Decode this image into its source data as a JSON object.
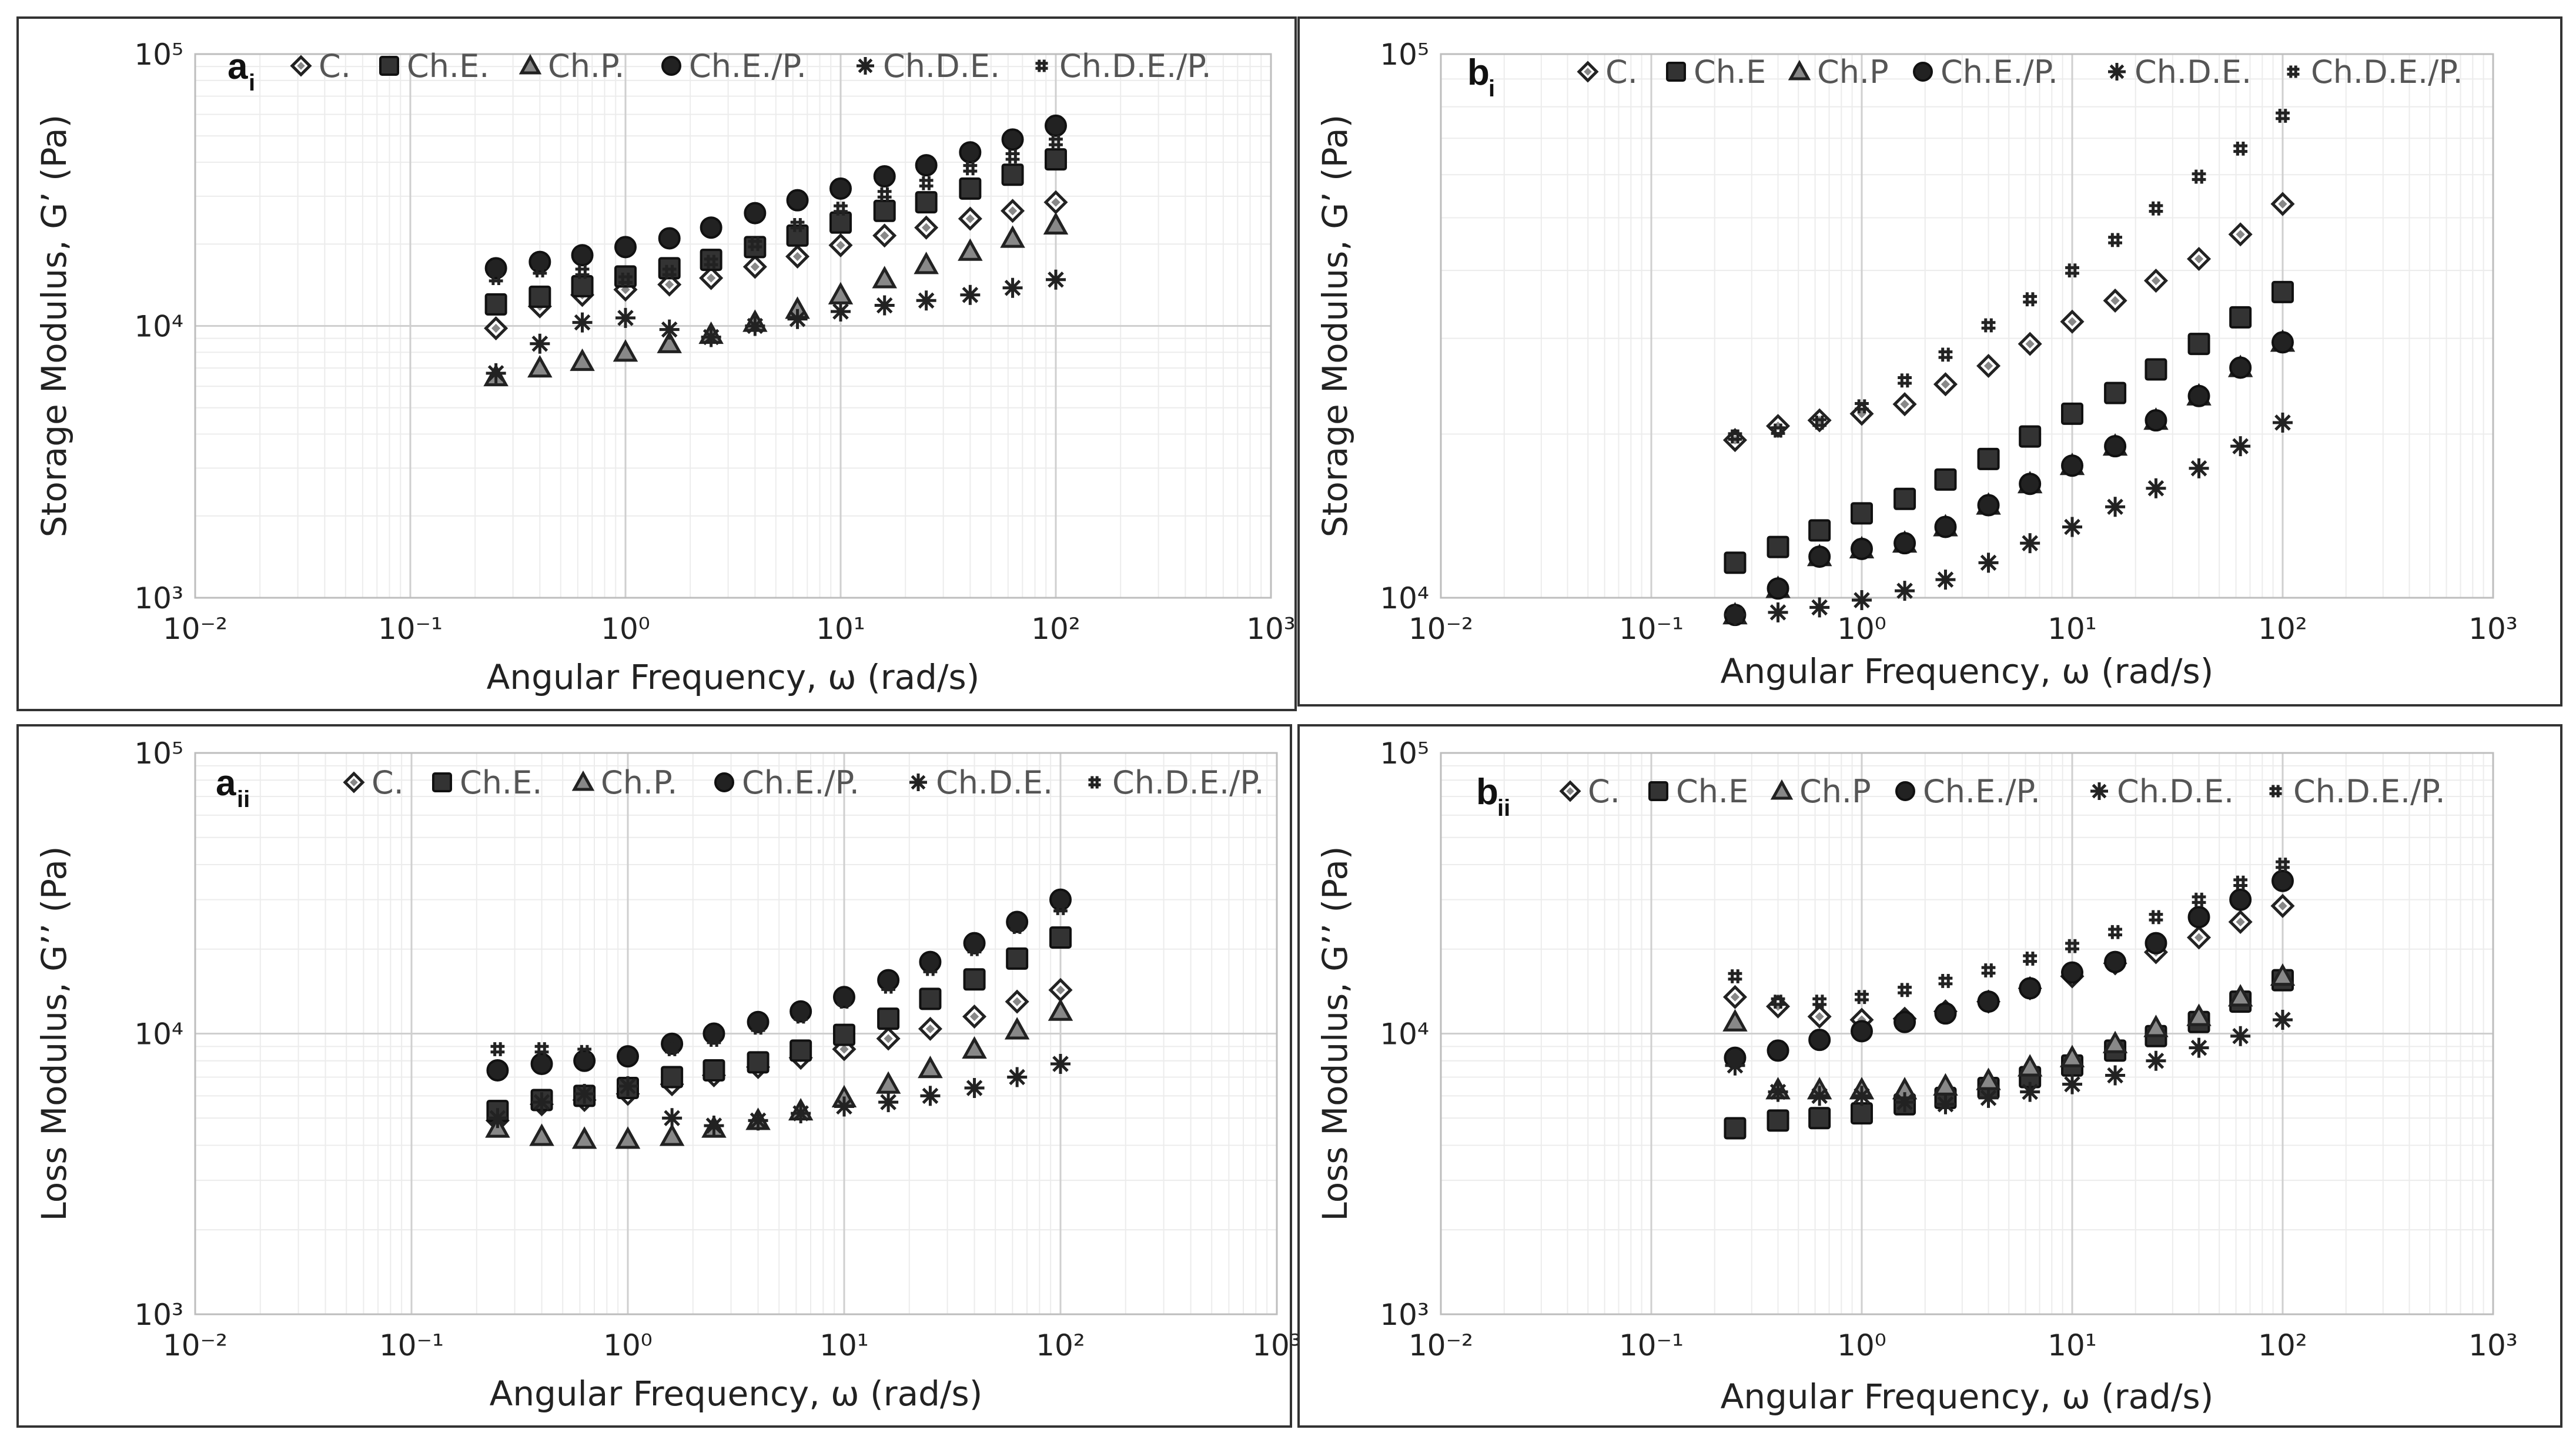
{
  "styles": {
    "C.": {
      "marker": "diamond",
      "fill": "#ffffff",
      "stroke": "#222222"
    },
    "Ch.E.": {
      "marker": "square",
      "fill": "#333333",
      "stroke": "#111111"
    },
    "Ch.P.": {
      "marker": "triangle",
      "fill": "#888888",
      "stroke": "#222222"
    },
    "Ch.E./P.": {
      "marker": "circle",
      "fill": "#222222",
      "stroke": "#111111"
    },
    "Ch.D.E.": {
      "marker": "star",
      "fill": "#222222",
      "stroke": "#222222"
    },
    "Ch.D.E./P.": {
      "marker": "hash",
      "fill": "#222222",
      "stroke": "#222222"
    }
  },
  "chart_data": [
    {
      "id": "ai",
      "type": "scatter",
      "panel_letter": "a",
      "panel_sub": "i",
      "xlabel": "Angular Frequency, ω (rad/s)",
      "ylabel": "Storage Modulus, G’ (Pa)",
      "xscale": "log",
      "yscale": "log",
      "xlim": [
        0.01,
        1000
      ],
      "ylim": [
        1000,
        100000
      ],
      "xticks": [
        "10⁻²",
        "10⁻¹",
        "10⁰",
        "10¹",
        "10²",
        "10³"
      ],
      "yticks": [
        "10³",
        "10⁴",
        "10⁵"
      ],
      "grid": true,
      "legend_position": "top",
      "legend": [
        "C.",
        "Ch.E.",
        "Ch.P.",
        "Ch.E./P.",
        "Ch.D.E.",
        "Ch.D.E./P."
      ],
      "x": [
        0.25,
        0.4,
        0.63,
        1.0,
        1.6,
        2.5,
        4.0,
        6.3,
        10,
        16,
        25,
        40,
        63,
        100
      ],
      "series": [
        {
          "name": "C.",
          "style": "C.",
          "values": [
            9800,
            11800,
            13000,
            13600,
            14200,
            15000,
            16500,
            18000,
            19800,
            21500,
            23000,
            24800,
            26500,
            28500
          ]
        },
        {
          "name": "Ch.E.",
          "style": "Ch.E.",
          "values": [
            12000,
            12800,
            14000,
            15200,
            16300,
            17500,
            19500,
            21500,
            24000,
            26500,
            28500,
            32000,
            36000,
            41000
          ]
        },
        {
          "name": "Ch.P.",
          "style": "Ch.P.",
          "values": [
            6500,
            7000,
            7400,
            8000,
            8600,
            9300,
            10300,
            11500,
            13000,
            14900,
            16800,
            18800,
            21000,
            23500
          ]
        },
        {
          "name": "Ch.E./P.",
          "style": "Ch.E./P.",
          "values": [
            16300,
            17200,
            18200,
            19500,
            21000,
            23000,
            26000,
            29000,
            32000,
            35500,
            39000,
            43500,
            48500,
            54500
          ]
        },
        {
          "name": "Ch.D.E.",
          "style": "Ch.D.E.",
          "values": [
            6700,
            8600,
            10300,
            10700,
            9700,
            9100,
            10000,
            10600,
            11300,
            11900,
            12400,
            13000,
            13800,
            14800
          ]
        },
        {
          "name": "Ch.D.E./P.",
          "style": "Ch.D.E./P.",
          "values": [
            15000,
            16000,
            15800,
            14800,
            15800,
            17200,
            20000,
            23500,
            27000,
            30500,
            33500,
            38000,
            42000,
            47500
          ]
        }
      ]
    },
    {
      "id": "bi",
      "type": "scatter",
      "panel_letter": "b",
      "panel_sub": "i",
      "xlabel": "Angular Frequency, ω (rad/s)",
      "ylabel": "Storage Modulus, G’ (Pa)",
      "xscale": "log",
      "yscale": "log",
      "xlim": [
        0.01,
        1000
      ],
      "ylim": [
        10000,
        100000
      ],
      "xticks": [
        "10⁻²",
        "10⁻¹",
        "10⁰",
        "10¹",
        "10²",
        "10³"
      ],
      "yticks": [
        "10⁴",
        "10⁵"
      ],
      "grid": true,
      "legend_position": "top",
      "legend": [
        "C.",
        "Ch.E",
        "Ch.P",
        "Ch.E./P.",
        "Ch.D.E.",
        "Ch.D.E./P."
      ],
      "x": [
        0.25,
        0.4,
        0.63,
        1.0,
        1.6,
        2.5,
        4.0,
        6.3,
        10,
        16,
        25,
        40,
        63,
        100
      ],
      "series": [
        {
          "name": "C.",
          "style": "C.",
          "values": [
            19500,
            20700,
            21200,
            21800,
            22700,
            24700,
            26700,
            29300,
            32200,
            35200,
            38300,
            42000,
            46600,
            53000
          ]
        },
        {
          "name": "Ch.E",
          "style": "Ch.E.",
          "values": [
            11600,
            12400,
            13300,
            14300,
            15200,
            16500,
            18000,
            19800,
            21800,
            23800,
            26300,
            29300,
            32800,
            36500
          ]
        },
        {
          "name": "Ch.P",
          "style": "Ch.P.",
          "values": [
            9300,
            10400,
            11900,
            12300,
            12600,
            13500,
            14800,
            16200,
            17500,
            19000,
            21200,
            23500,
            26500,
            29500
          ]
        },
        {
          "name": "Ch.E./P.",
          "style": "Ch.E./P.",
          "values": [
            9300,
            10400,
            11900,
            12300,
            12600,
            13500,
            14800,
            16200,
            17500,
            19000,
            21200,
            23500,
            26500,
            29500
          ]
        },
        {
          "name": "Ch.D.E.",
          "style": "Ch.D.E.",
          "values": [
            9300,
            9400,
            9600,
            9900,
            10300,
            10800,
            11600,
            12600,
            13500,
            14700,
            15900,
            17300,
            19000,
            21000
          ]
        },
        {
          "name": "Ch.D.E./P.",
          "style": "Ch.D.E./P.",
          "values": [
            19800,
            20300,
            21000,
            22500,
            25100,
            28000,
            31700,
            35400,
            40000,
            45500,
            52000,
            59500,
            67000,
            77000
          ]
        }
      ]
    },
    {
      "id": "aii",
      "type": "scatter",
      "panel_letter": "a",
      "panel_sub": "ii",
      "xlabel": "Angular Frequency, ω (rad/s)",
      "ylabel": "Loss Modulus, G’’ (Pa)",
      "xscale": "log",
      "yscale": "log",
      "xlim": [
        0.01,
        1000
      ],
      "ylim": [
        1000,
        100000
      ],
      "xticks": [
        "10⁻²",
        "10⁻¹",
        "10⁰",
        "10¹",
        "10²",
        "10³"
      ],
      "yticks": [
        "10³",
        "10⁴",
        "10⁵"
      ],
      "grid": true,
      "legend_position": "top",
      "legend": [
        "C.",
        "Ch.E.",
        "Ch.P.",
        "Ch.E./P.",
        "Ch.D.E.",
        "Ch.D.E./P."
      ],
      "x": [
        0.25,
        0.4,
        0.63,
        1.0,
        1.6,
        2.5,
        4.0,
        6.3,
        10,
        16,
        25,
        40,
        63,
        100
      ],
      "series": [
        {
          "name": "C.",
          "style": "C.",
          "values": [
            4900,
            5600,
            5800,
            6100,
            6600,
            7100,
            7600,
            8200,
            8800,
            9600,
            10400,
            11500,
            13000,
            14300
          ]
        },
        {
          "name": "Ch.E.",
          "style": "Ch.E.",
          "values": [
            5300,
            5800,
            6000,
            6400,
            7000,
            7400,
            7900,
            8700,
            9900,
            11300,
            13300,
            15600,
            18500,
            22000
          ]
        },
        {
          "name": "Ch.P.",
          "style": "Ch.P.",
          "values": [
            4600,
            4300,
            4200,
            4200,
            4300,
            4600,
            4900,
            5300,
            5900,
            6600,
            7500,
            8800,
            10300,
            12000
          ]
        },
        {
          "name": "Ch.E./P.",
          "style": "Ch.E./P.",
          "values": [
            7400,
            7800,
            8000,
            8300,
            9200,
            10000,
            11000,
            12000,
            13500,
            15500,
            18000,
            21000,
            25000,
            30000
          ]
        },
        {
          "name": "Ch.D.E.",
          "style": "Ch.D.E.",
          "values": [
            5000,
            5700,
            6100,
            6500,
            5000,
            4700,
            4900,
            5200,
            5500,
            5700,
            6000,
            6400,
            7000,
            7800
          ]
        },
        {
          "name": "Ch.D.E./P.",
          "style": "Ch.D.E./P.",
          "values": [
            8800,
            8800,
            8600,
            8300,
            8800,
            9500,
            10500,
            11500,
            13000,
            14700,
            17000,
            20000,
            24000,
            28000
          ]
        }
      ]
    },
    {
      "id": "bii",
      "type": "scatter",
      "panel_letter": "b",
      "panel_sub": "ii",
      "xlabel": "Angular Frequency, ω (rad/s)",
      "ylabel": "Loss Modulus, G’’ (Pa)",
      "xscale": "log",
      "yscale": "log",
      "xlim": [
        0.01,
        1000
      ],
      "ylim": [
        1000,
        100000
      ],
      "xticks": [
        "10⁻²",
        "10⁻¹",
        "10⁰",
        "10¹",
        "10²",
        "10³"
      ],
      "yticks": [
        "10³",
        "10⁴",
        "10⁵"
      ],
      "grid": true,
      "legend_position": "top",
      "legend": [
        "C.",
        "Ch.E",
        "Ch.P",
        "Ch.E./P.",
        "Ch.D.E.",
        "Ch.D.E./P."
      ],
      "x": [
        0.25,
        0.4,
        0.63,
        1.0,
        1.6,
        2.5,
        4.0,
        6.3,
        10,
        16,
        25,
        40,
        63,
        100
      ],
      "series": [
        {
          "name": "C.",
          "style": "C.",
          "values": [
            13500,
            12500,
            11500,
            11200,
            11300,
            12000,
            13000,
            14500,
            16000,
            17800,
            19500,
            22000,
            25000,
            28500
          ]
        },
        {
          "name": "Ch.E",
          "style": "Ch.E.",
          "values": [
            4600,
            4900,
            5000,
            5200,
            5600,
            5900,
            6400,
            7000,
            7700,
            8700,
            9800,
            11000,
            13000,
            15500
          ]
        },
        {
          "name": "Ch.P",
          "style": "Ch.P.",
          "values": [
            11000,
            6300,
            6300,
            6300,
            6300,
            6500,
            6800,
            7600,
            8200,
            9200,
            10500,
            11500,
            13500,
            16000
          ]
        },
        {
          "name": "Ch.E./P.",
          "style": "Ch.E./P.",
          "values": [
            8200,
            8700,
            9500,
            10200,
            11000,
            11800,
            13000,
            14500,
            16500,
            18000,
            21000,
            26000,
            30000,
            35000
          ]
        },
        {
          "name": "Ch.D.E.",
          "style": "Ch.D.E.",
          "values": [
            7700,
            6200,
            6000,
            6000,
            5700,
            5600,
            5900,
            6200,
            6600,
            7100,
            8000,
            8900,
            9800,
            11200
          ]
        },
        {
          "name": "Ch.D.E./P.",
          "style": "Ch.D.E./P.",
          "values": [
            16000,
            13000,
            13000,
            13500,
            14300,
            15400,
            16800,
            18500,
            20500,
            23000,
            26000,
            30000,
            34500,
            40000
          ]
        }
      ]
    }
  ]
}
